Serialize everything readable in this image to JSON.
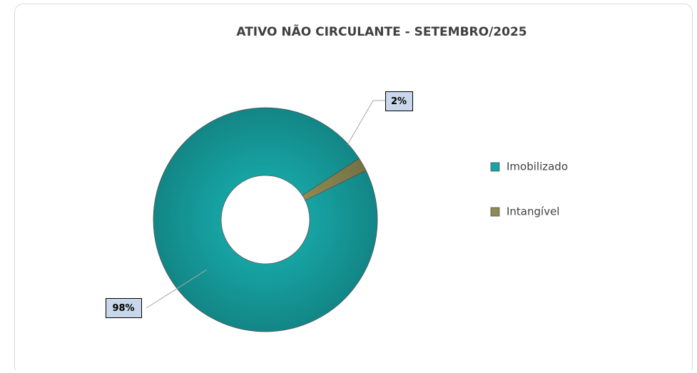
{
  "chart_data": {
    "type": "doughnut",
    "title": "ATIVO NÃO CIRCULANTE - SETEMBRO/2025",
    "categories": [
      "Imobilizado",
      "Intangível"
    ],
    "values": [
      98,
      2
    ],
    "value_labels": [
      "98%",
      "2%"
    ],
    "colors": [
      "#17a3a3",
      "#8e8a55"
    ],
    "legend": "right"
  }
}
